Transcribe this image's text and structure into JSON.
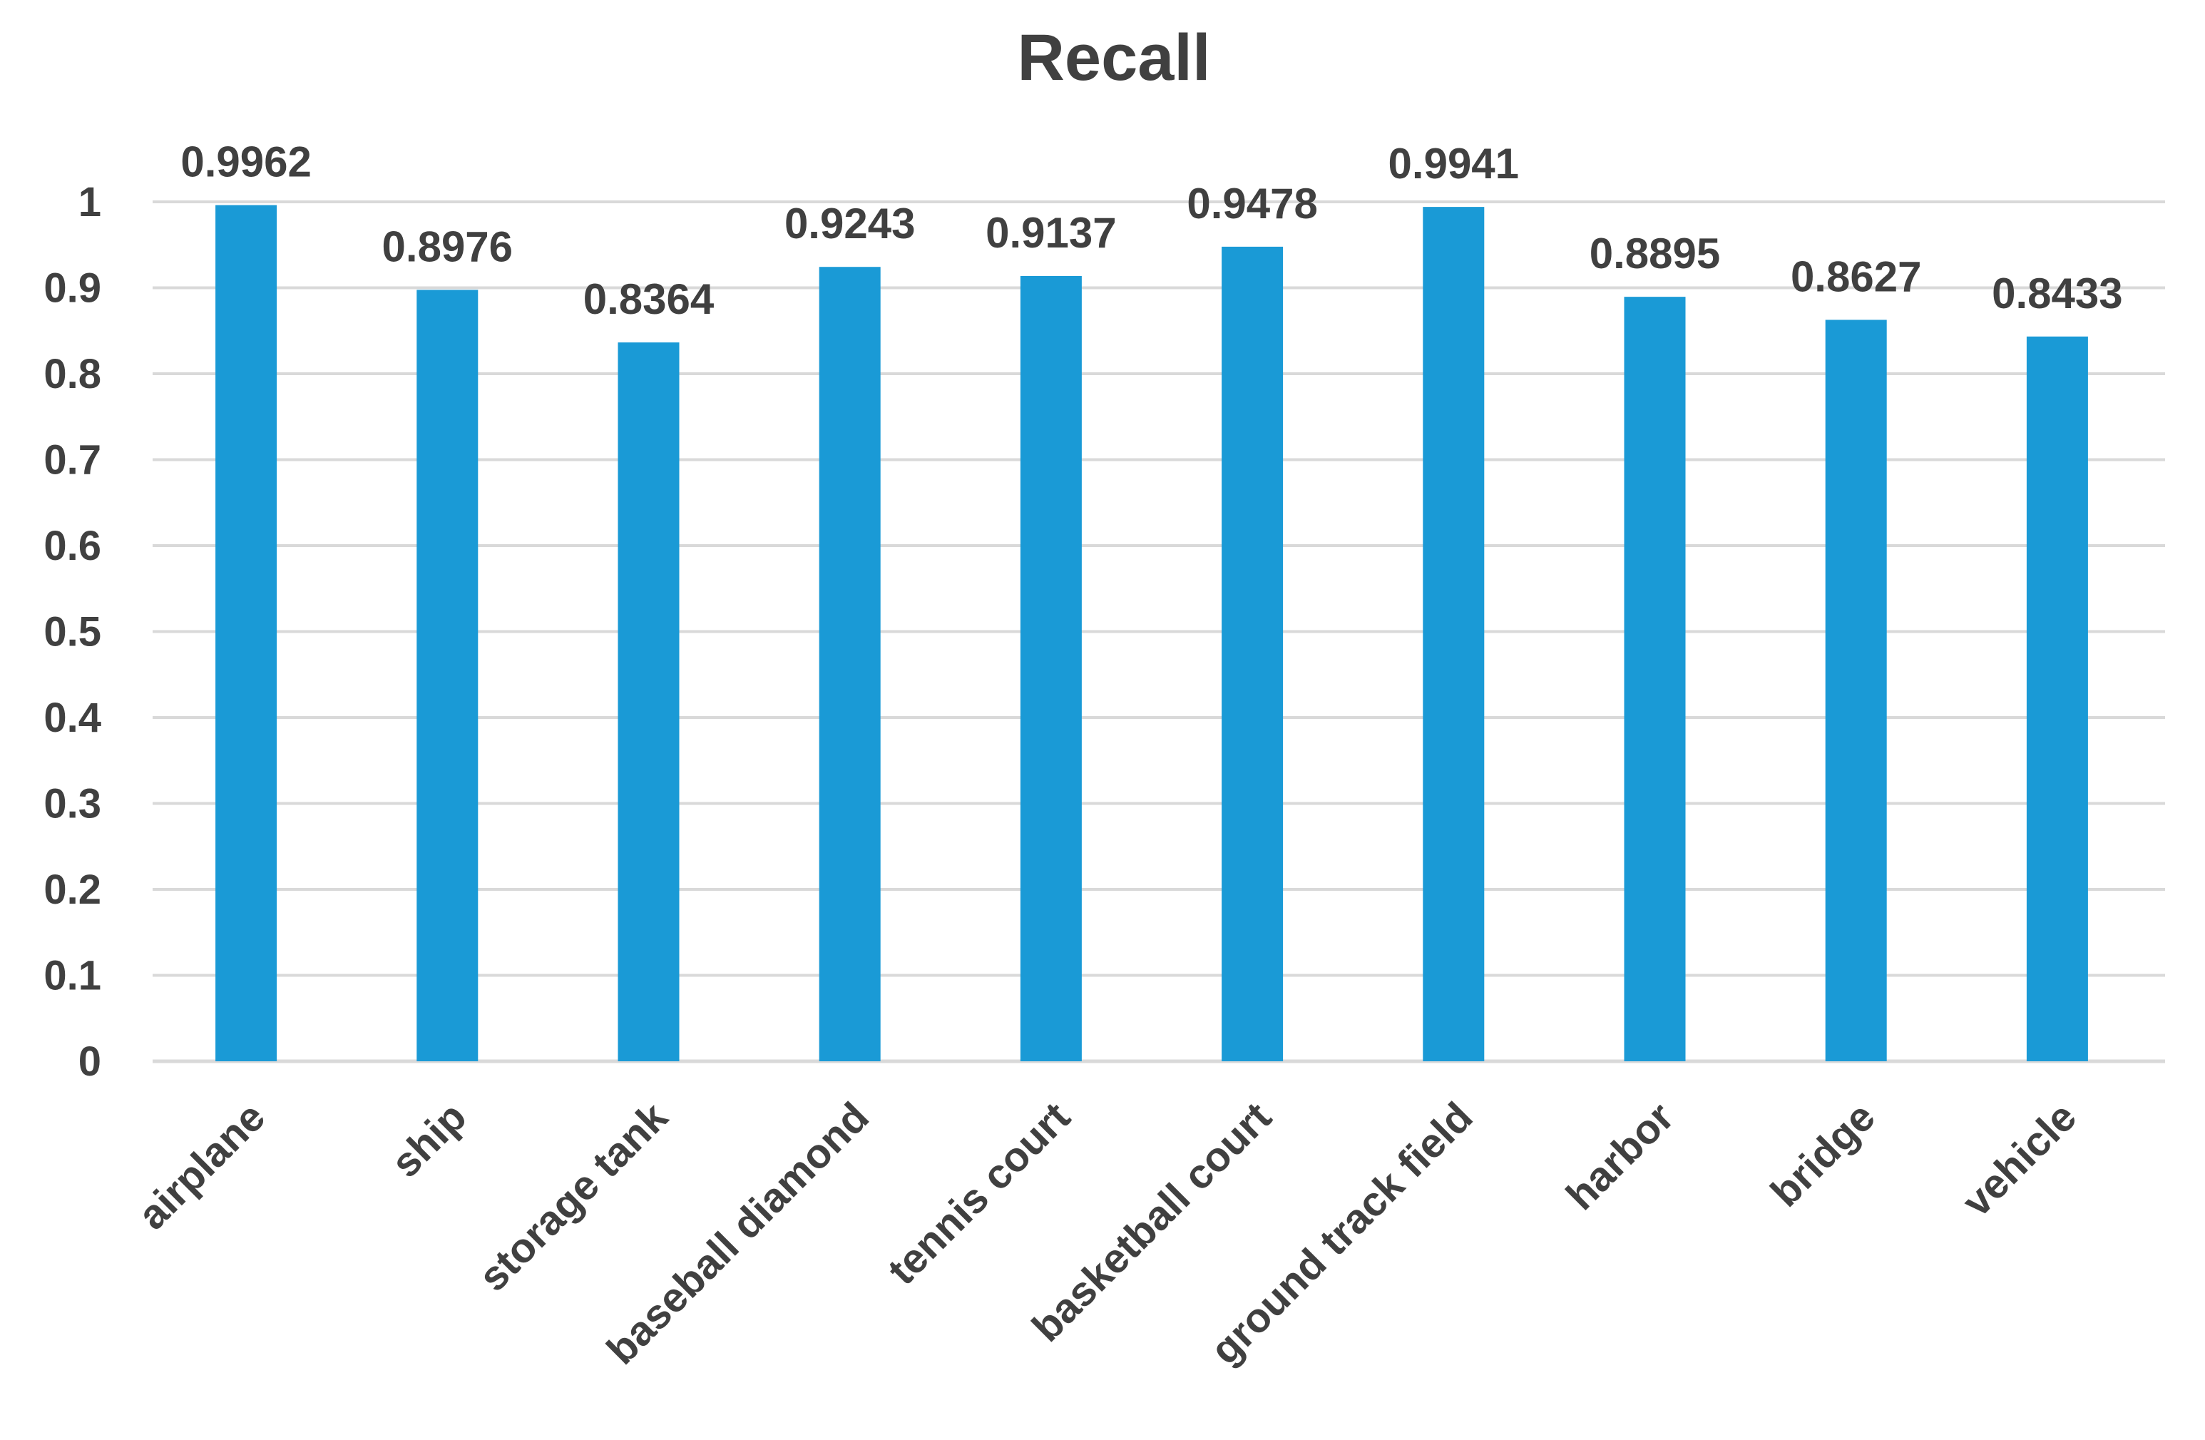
{
  "chart_data": {
    "type": "bar",
    "title": "Recall",
    "categories": [
      "airplane",
      "ship",
      "storage tank",
      "baseball diamond",
      "tennis court",
      "basketball court",
      "ground track field",
      "harbor",
      "bridge",
      "vehicle"
    ],
    "values": [
      0.9962,
      0.8976,
      0.8364,
      0.9243,
      0.9137,
      0.9478,
      0.9941,
      0.8895,
      0.8627,
      0.8433
    ],
    "data_labels": [
      "0.9962",
      "0.8976",
      "0.8364",
      "0.9243",
      "0.9137",
      "0.9478",
      "0.9941",
      "0.8895",
      "0.8627",
      "0.8433"
    ],
    "ylim": [
      0,
      1
    ],
    "yticks": [
      "0",
      "0.1",
      "0.2",
      "0.3",
      "0.4",
      "0.5",
      "0.6",
      "0.7",
      "0.8",
      "0.9",
      "1"
    ],
    "xlabel": "",
    "ylabel": "",
    "grid": true,
    "legend": "none",
    "bar_color": "#1a9ad6"
  }
}
